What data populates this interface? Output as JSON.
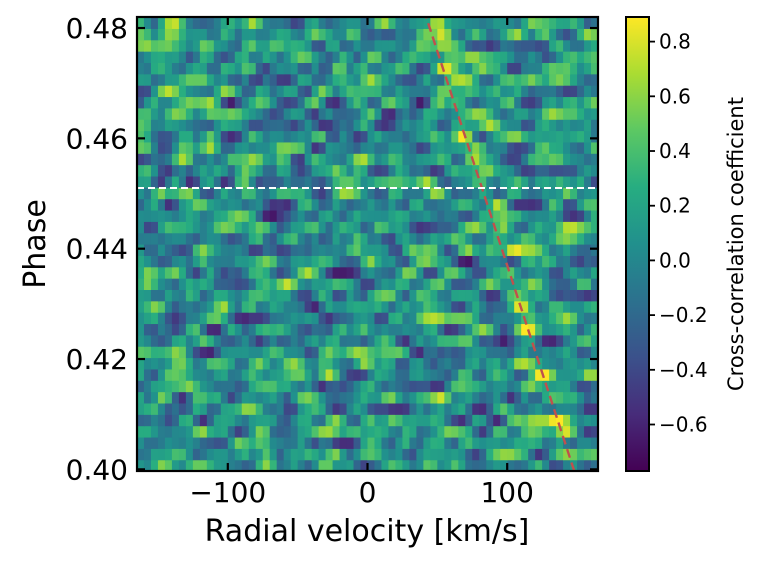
{
  "chart_data": {
    "type": "heatmap",
    "title": "",
    "xlabel": "Radial velocity [km/s]",
    "ylabel": "Phase",
    "xlim": [
      -165,
      165
    ],
    "ylim": [
      0.3997,
      0.482
    ],
    "x_ticks": [
      -100,
      0,
      100
    ],
    "x_tick_labels": [
      "−100",
      "0",
      "100"
    ],
    "y_ticks": [
      0.4,
      0.42,
      0.44,
      0.46,
      0.48
    ],
    "y_tick_labels": [
      "0.40",
      "0.42",
      "0.44",
      "0.46",
      "0.48"
    ],
    "colormap": "viridis",
    "colorbar": {
      "label": "Cross-correlation coefficient",
      "vmin": -0.77,
      "vmax": 0.89,
      "ticks": [
        -0.6,
        -0.4,
        -0.2,
        0.0,
        0.2,
        0.4,
        0.6,
        0.8
      ],
      "tick_labels": [
        "−0.6",
        "−0.4",
        "−0.2",
        "0.0",
        "0.2",
        "0.4",
        "0.6",
        "0.8"
      ]
    },
    "grid": {
      "n_phase": 40,
      "n_velocity": 66,
      "description": "Noisy cross-correlation map; a faint positive trail follows the planet radial velocity track."
    },
    "planet_track": {
      "line_style": "dashed",
      "color": "#c0504d",
      "points": [
        {
          "phase": 0.3997,
          "rv": 148
        },
        {
          "phase": 0.482,
          "rv": 42
        }
      ]
    },
    "phase_marker": {
      "line_style": "dashed",
      "color": "#ffffff",
      "phase": 0.451
    }
  }
}
